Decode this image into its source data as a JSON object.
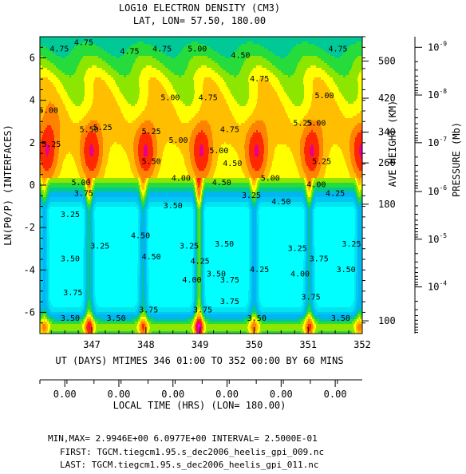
{
  "chart_data": {
    "type": "heatmap",
    "title": "LOG10 ELECTRON DENSITY (CM3)",
    "subtitle": "LAT, LON= 57.50,     180.00",
    "xlabel": "UT (DAYS) MTIMES 346 01:00 TO 352 00:00 BY     60 MINS",
    "ylabel": "LN(P0/P) (INTERFACES)",
    "x_ticks": [
      "347",
      "348",
      "349",
      "350",
      "351",
      "352"
    ],
    "x_tick_values": [
      347,
      348,
      349,
      350,
      351,
      352
    ],
    "xlim": [
      346.04,
      352.0
    ],
    "ylim": [
      -7,
      7
    ],
    "y_ticks": [
      "-6",
      "-4",
      "-2",
      "0",
      "2",
      "4",
      "6"
    ],
    "y_tick_values": [
      -6,
      -4,
      -2,
      0,
      2,
      4,
      6
    ],
    "height_axis": {
      "label": "AVE HEIGHT (KM)",
      "ticks": [
        "100",
        "180",
        "260",
        "340",
        "420",
        "500"
      ],
      "tick_zp": [
        -6.4,
        -0.9,
        1.05,
        2.5,
        4.1,
        5.85
      ]
    },
    "pressure_axis": {
      "label": "PRESSURE (Mb)",
      "ticks": [
        {
          "base": "10",
          "exp": "-4",
          "zp": -4.8
        },
        {
          "base": "10",
          "exp": "-5",
          "zp": -2.55
        },
        {
          "base": "10",
          "exp": "-6",
          "zp": -0.3
        },
        {
          "base": "10",
          "exp": "-7",
          "zp": 2.0
        },
        {
          "base": "10",
          "exp": "-8",
          "zp": 4.25
        },
        {
          "base": "10",
          "exp": "-9",
          "zp": 6.5
        }
      ]
    },
    "local_time_axis": {
      "label": "LOCAL TIME (HRS) (LON= 180.00)",
      "ticks": [
        "0.00",
        "0.00",
        "0.00",
        "0.00",
        "0.00",
        "0.00"
      ]
    },
    "contour_min": 2.9946,
    "contour_max": 6.0977,
    "contour_interval": 0.25,
    "color_levels": [
      {
        "level": 3.0,
        "color": "#00ffff"
      },
      {
        "level": 3.25,
        "color": "#00e5ef"
      },
      {
        "level": 3.5,
        "color": "#00c8f0"
      },
      {
        "level": 3.75,
        "color": "#00b4f6"
      },
      {
        "level": 4.0,
        "color": "#00c896"
      },
      {
        "level": 4.25,
        "color": "#26dc3c"
      },
      {
        "level": 4.5,
        "color": "#8ce600"
      },
      {
        "level": 4.75,
        "color": "#ffff00"
      },
      {
        "level": 5.0,
        "color": "#ffbe00"
      },
      {
        "level": 5.25,
        "color": "#ff8200"
      },
      {
        "level": 5.5,
        "color": "#ff2800"
      },
      {
        "level": 5.75,
        "color": "#e6008c"
      },
      {
        "level": 6.0,
        "color": "#ff00ff"
      }
    ],
    "contour_labels": [
      {
        "text": "4.75",
        "x": 346.4,
        "y": 6.3
      },
      {
        "text": "4.75",
        "x": 346.85,
        "y": 6.6
      },
      {
        "text": "4.75",
        "x": 347.7,
        "y": 6.2
      },
      {
        "text": "4.75",
        "x": 348.3,
        "y": 6.3
      },
      {
        "text": "5.00",
        "x": 348.45,
        "y": 4.0
      },
      {
        "text": "5.00",
        "x": 346.2,
        "y": 3.4
      },
      {
        "text": "5.25",
        "x": 346.25,
        "y": 1.8
      },
      {
        "text": "5.00",
        "x": 346.8,
        "y": 0.0
      },
      {
        "text": "5.50",
        "x": 346.95,
        "y": 2.5
      },
      {
        "text": "5.25",
        "x": 347.2,
        "y": 2.6
      },
      {
        "text": "5.50",
        "x": 348.1,
        "y": 1.0
      },
      {
        "text": "5.25",
        "x": 348.1,
        "y": 2.4
      },
      {
        "text": "5.00",
        "x": 348.6,
        "y": 2.0
      },
      {
        "text": "5.00",
        "x": 348.95,
        "y": 6.3
      },
      {
        "text": "4.75",
        "x": 349.15,
        "y": 4.0
      },
      {
        "text": "4.50",
        "x": 349.75,
        "y": 6.0
      },
      {
        "text": "4.75",
        "x": 350.1,
        "y": 4.9
      },
      {
        "text": "4.75",
        "x": 349.55,
        "y": 2.5
      },
      {
        "text": "5.00",
        "x": 349.35,
        "y": 1.5
      },
      {
        "text": "5.00",
        "x": 350.3,
        "y": 0.2
      },
      {
        "text": "5.25",
        "x": 350.9,
        "y": 2.8
      },
      {
        "text": "5.00",
        "x": 351.15,
        "y": 2.8
      },
      {
        "text": "5.00",
        "x": 351.3,
        "y": 4.1
      },
      {
        "text": "4.75",
        "x": 351.55,
        "y": 6.3
      },
      {
        "text": "5.25",
        "x": 351.25,
        "y": 1.0
      },
      {
        "text": "4.50",
        "x": 349.6,
        "y": 0.9
      },
      {
        "text": "3.75",
        "x": 346.85,
        "y": -0.5
      },
      {
        "text": "3.25",
        "x": 346.6,
        "y": -1.5
      },
      {
        "text": "3.50",
        "x": 346.6,
        "y": -3.6
      },
      {
        "text": "3.75",
        "x": 346.65,
        "y": -5.2
      },
      {
        "text": "3.50",
        "x": 346.6,
        "y": -6.4
      },
      {
        "text": "3.25",
        "x": 347.15,
        "y": -3.0
      },
      {
        "text": "3.50",
        "x": 347.45,
        "y": -6.4
      },
      {
        "text": "4.50",
        "x": 347.9,
        "y": -2.5
      },
      {
        "text": "4.50",
        "x": 348.1,
        "y": -3.5
      },
      {
        "text": "3.75",
        "x": 348.05,
        "y": -6.0
      },
      {
        "text": "3.50",
        "x": 348.5,
        "y": -1.1
      },
      {
        "text": "4.00",
        "x": 348.65,
        "y": 0.2
      },
      {
        "text": "3.25",
        "x": 348.8,
        "y": -3.0
      },
      {
        "text": "4.00",
        "x": 348.85,
        "y": -4.6
      },
      {
        "text": "3.75",
        "x": 349.05,
        "y": -6.0
      },
      {
        "text": "4.25",
        "x": 349.0,
        "y": -3.7
      },
      {
        "text": "3.50",
        "x": 349.3,
        "y": -4.3
      },
      {
        "text": "3.50",
        "x": 349.45,
        "y": -2.9
      },
      {
        "text": "3.75",
        "x": 349.55,
        "y": -4.6
      },
      {
        "text": "3.75",
        "x": 349.55,
        "y": -5.6
      },
      {
        "text": "4.50",
        "x": 349.4,
        "y": 0.0
      },
      {
        "text": "3.25",
        "x": 349.95,
        "y": -0.6
      },
      {
        "text": "3.50",
        "x": 350.05,
        "y": -6.4
      },
      {
        "text": "4.25",
        "x": 350.1,
        "y": -4.1
      },
      {
        "text": "4.50",
        "x": 350.5,
        "y": -0.9
      },
      {
        "text": "4.00",
        "x": 350.85,
        "y": -4.3
      },
      {
        "text": "3.25",
        "x": 350.8,
        "y": -3.1
      },
      {
        "text": "3.75",
        "x": 351.2,
        "y": -3.6
      },
      {
        "text": "3.75",
        "x": 351.05,
        "y": -5.4
      },
      {
        "text": "4.00",
        "x": 351.15,
        "y": -0.1
      },
      {
        "text": "3.50",
        "x": 351.7,
        "y": -4.1
      },
      {
        "text": "3.25",
        "x": 351.8,
        "y": -2.9
      },
      {
        "text": "3.50",
        "x": 351.6,
        "y": -6.4
      },
      {
        "text": "4.25",
        "x": 351.5,
        "y": -0.5
      }
    ]
  },
  "footer": {
    "line1": "MIN,MAX=  2.9946E+00  6.0977E+00 INTERVAL=  2.5000E-01",
    "line2": "FIRST: TGCM.tiegcm1.95.s_dec2006_heelis_gpi_009.nc",
    "line3": "LAST:  TGCM.tiegcm1.95.s_dec2006_heelis_gpi_011.nc"
  }
}
